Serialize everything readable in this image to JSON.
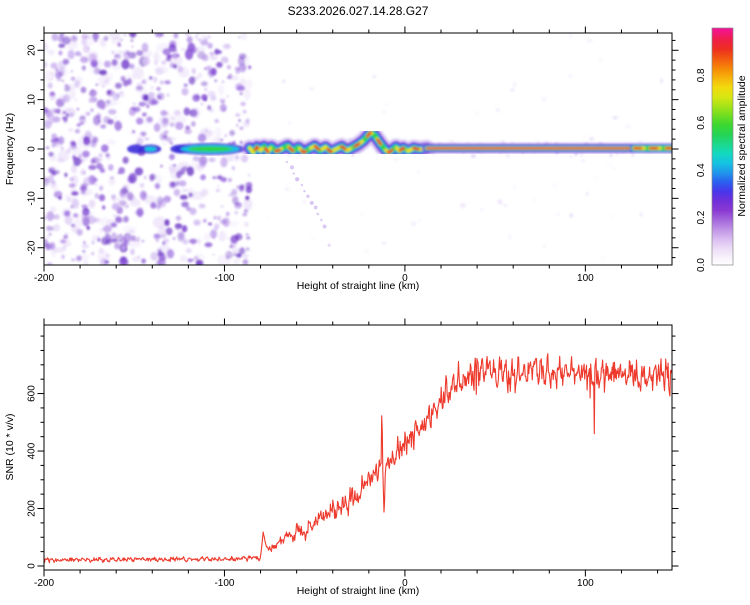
{
  "figure_title": "S233.2026.027.14.28.G27",
  "accent_colors": {
    "trace_red": "#ee3a2d",
    "noise_purple": "#8a3ad2",
    "band_core": "#ea1a52"
  },
  "chart_data": [
    {
      "type": "heatmap",
      "title": "S233.2026.027.14.28.G27",
      "xlabel": "Height of straight line (km)",
      "ylabel": "Frequency (Hz)",
      "xlim": [
        -200,
        148
      ],
      "ylim": [
        -23.5,
        23.5
      ],
      "xticks": [
        -200,
        -100,
        0,
        100
      ],
      "x_minor_step": 20,
      "yticks": [
        -20,
        -10,
        0,
        10,
        20
      ],
      "y_minor_step": 2,
      "grid": false,
      "colorbar": {
        "label": "Normalized spectral amplitude",
        "range": [
          0,
          1
        ],
        "ticks": [
          0.0,
          0.2,
          0.4,
          0.6,
          0.8
        ],
        "gradient_stops": [
          [
            0.0,
            "#ffffff"
          ],
          [
            0.03,
            "#f8f2fc"
          ],
          [
            0.07,
            "#ecdcf7"
          ],
          [
            0.11,
            "#d9bcf0"
          ],
          [
            0.15,
            "#bf93e6"
          ],
          [
            0.19,
            "#a567dc"
          ],
          [
            0.23,
            "#8a3ad2"
          ],
          [
            0.27,
            "#712fd9"
          ],
          [
            0.31,
            "#4836ea"
          ],
          [
            0.35,
            "#2b60f0"
          ],
          [
            0.39,
            "#1f97ea"
          ],
          [
            0.43,
            "#15c3e2"
          ],
          [
            0.47,
            "#13d8c0"
          ],
          [
            0.51,
            "#1cd88b"
          ],
          [
            0.55,
            "#25d455"
          ],
          [
            0.59,
            "#3bd732"
          ],
          [
            0.63,
            "#6fdd21"
          ],
          [
            0.67,
            "#a5e318"
          ],
          [
            0.71,
            "#d8e612"
          ],
          [
            0.75,
            "#f2d90e"
          ],
          [
            0.79,
            "#f6b30a"
          ],
          [
            0.83,
            "#f68708"
          ],
          [
            0.87,
            "#f25a10"
          ],
          [
            0.91,
            "#ee2f20"
          ],
          [
            0.95,
            "#ee1f46"
          ],
          [
            1.0,
            "#f3119b"
          ]
        ]
      },
      "features": {
        "dense_noise_region_x": [
          -200,
          -86
        ],
        "zero_line_blobs": [
          {
            "x": -149,
            "w": 5,
            "kind": "blue"
          },
          {
            "x": -141,
            "w": 6,
            "kind": "cyan"
          },
          {
            "x": -124,
            "w": 6,
            "kind": "blue"
          },
          {
            "x": -108,
            "w": 20,
            "kind": "green-streak"
          }
        ],
        "signal_band_anchors": [
          [
            -86,
            0.2
          ],
          [
            -84,
            -0.7
          ],
          [
            -82,
            0.4
          ],
          [
            -80,
            -0.3
          ],
          [
            -78,
            0.5
          ],
          [
            -76,
            -0.6
          ],
          [
            -74,
            0.4
          ],
          [
            -71,
            -0.5
          ],
          [
            -68,
            0.1
          ],
          [
            -65,
            0.6
          ],
          [
            -62,
            -0.4
          ],
          [
            -59,
            0.3
          ],
          [
            -56,
            -0.7
          ],
          [
            -53,
            0.0
          ],
          [
            -50,
            0.6
          ],
          [
            -47,
            -0.3
          ],
          [
            -44,
            0.4
          ],
          [
            -41,
            -0.6
          ],
          [
            -38,
            0.0
          ],
          [
            -35,
            0.5
          ],
          [
            -32,
            -0.3
          ],
          [
            -29,
            0.3
          ],
          [
            -26,
            0.9
          ],
          [
            -23,
            1.7
          ],
          [
            -21,
            2.5
          ],
          [
            -19,
            3.4
          ],
          [
            -17,
            2.9
          ],
          [
            -15,
            1.8
          ],
          [
            -13,
            0.8
          ],
          [
            -11,
            -0.1
          ],
          [
            -9,
            -0.7
          ],
          [
            -7,
            -0.2
          ],
          [
            -5,
            0.4
          ],
          [
            -3,
            -0.4
          ],
          [
            -1,
            0.2
          ],
          [
            2,
            -0.4
          ],
          [
            5,
            0.2
          ],
          [
            8,
            -0.1
          ],
          [
            12,
            0.15
          ]
        ],
        "straight_band": {
          "from_x": 12,
          "to_x": 148,
          "freq": 0.15
        },
        "bright_right_segment_x": [
          127,
          148
        ],
        "diagonal_streak": {
          "from": [
            -65,
            -2.5
          ],
          "to": [
            -44,
            -15.5
          ]
        },
        "render_hints": {
          "seed": 20260427,
          "dense_blob_count": 640,
          "dense_faint_count": 110,
          "near_band_dot_count": 150,
          "sparse_dot_count": 55,
          "speckle_palette": [
            "#5b21be",
            "#6930c8",
            "#7a3fd0",
            "#8a56d6",
            "#9b6ee0",
            "#b08ae6",
            "#c4a5ee",
            "#d8c2f4"
          ]
        }
      }
    },
    {
      "type": "line",
      "xlabel": "Height of straight line (km)",
      "ylabel": "SNR (10 * v/v)",
      "xlim": [
        -200,
        148
      ],
      "ylim": [
        0,
        840
      ],
      "xticks": [
        -200,
        -100,
        0,
        100
      ],
      "x_minor_step": 20,
      "yticks": [
        0,
        200,
        400,
        600
      ],
      "y_minor_step": 50,
      "grid": false,
      "series": [
        {
          "name": "SNR",
          "color": "#ee3a2d",
          "envelope_points": [
            [
              -200,
              22
            ],
            [
              -90,
              24
            ],
            [
              -80,
              30
            ],
            [
              -78.5,
              125
            ],
            [
              -77,
              70
            ],
            [
              -74,
              55
            ],
            [
              -71,
              75
            ],
            [
              -68,
              95
            ],
            [
              -65,
              115
            ],
            [
              -62,
              90
            ],
            [
              -59,
              130
            ],
            [
              -56,
              110
            ],
            [
              -53,
              150
            ],
            [
              -50,
              135
            ],
            [
              -47,
              175
            ],
            [
              -44,
              160
            ],
            [
              -41,
              200
            ],
            [
              -38,
              180
            ],
            [
              -35,
              225
            ],
            [
              -32,
              210
            ],
            [
              -29,
              255
            ],
            [
              -26,
              240
            ],
            [
              -23,
              285
            ],
            [
              -20,
              310
            ],
            [
              -18,
              295
            ],
            [
              -16,
              330
            ],
            [
              -14,
              340
            ],
            [
              -13.2,
              350
            ],
            [
              -12.8,
              575
            ],
            [
              -12.2,
              330
            ],
            [
              -11.5,
              165
            ],
            [
              -10.8,
              330
            ],
            [
              -10,
              355
            ],
            [
              -8,
              370
            ],
            [
              -6,
              385
            ],
            [
              -4,
              400
            ],
            [
              -2,
              410
            ],
            [
              0,
              420
            ],
            [
              2,
              435
            ],
            [
              4,
              450
            ],
            [
              7,
              465
            ],
            [
              10,
              485
            ],
            [
              13,
              515
            ],
            [
              16,
              545
            ],
            [
              19,
              570
            ],
            [
              22,
              595
            ],
            [
              25,
              615
            ],
            [
              28,
              635
            ],
            [
              31,
              648
            ],
            [
              34,
              658
            ],
            [
              38,
              665
            ],
            [
              45,
              670
            ],
            [
              60,
              668
            ],
            [
              80,
              672
            ],
            [
              100,
              665
            ],
            [
              120,
              670
            ],
            [
              148,
              660
            ]
          ]
        }
      ],
      "noise_model": {
        "seed": 77,
        "amp_anchors": [
          [
            -200,
            12
          ],
          [
            -83,
            12
          ],
          [
            -76,
            20
          ],
          [
            -55,
            40
          ],
          [
            -30,
            52
          ],
          [
            -14,
            58
          ],
          [
            0,
            62
          ],
          [
            20,
            72
          ],
          [
            40,
            80
          ],
          [
            148,
            80
          ]
        ],
        "step_km": 0.33
      }
    }
  ]
}
